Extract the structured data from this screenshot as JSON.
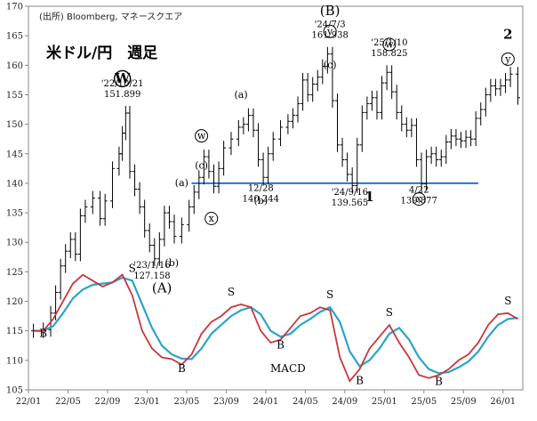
{
  "chart_data": {
    "type": "line",
    "source": "(出所) Bloomberg, マネースクエア",
    "title": "米ドル/円　週足",
    "y_ticks": [
      "105",
      "110",
      "115",
      "120",
      "125",
      "130",
      "135",
      "140",
      "145",
      "150",
      "155",
      "160",
      "165",
      "170"
    ],
    "ylim": [
      105,
      170
    ],
    "x_ticks": [
      "22/01",
      "22/05",
      "22/09",
      "23/01",
      "23/05",
      "23/09",
      "24/01",
      "24/05",
      "24/09",
      "25/01",
      "25/05",
      "25/09",
      "26/01"
    ],
    "xlim": [
      "2022-01",
      "2026-03"
    ],
    "price": {
      "name": "USD/JPY",
      "points": [
        [
          "2022-01",
          115.0
        ],
        [
          "2022-02",
          115.2
        ],
        [
          "2022-03",
          118.0
        ],
        [
          "2022-03",
          121.5
        ],
        [
          "2022-04",
          126.0
        ],
        [
          "2022-04",
          128.5
        ],
        [
          "2022-05",
          130.5
        ],
        [
          "2022-05",
          128.0
        ],
        [
          "2022-06",
          134.5
        ],
        [
          "2022-06",
          136.0
        ],
        [
          "2022-07",
          137.5
        ],
        [
          "2022-08",
          134.0
        ],
        [
          "2022-08",
          137.0
        ],
        [
          "2022-09",
          142.5
        ],
        [
          "2022-10",
          145.0
        ],
        [
          "2022-10",
          148.5
        ],
        [
          "2022-10",
          151.9
        ],
        [
          "2022-11",
          142.0
        ],
        [
          "2022-11",
          139.0
        ],
        [
          "2022-12",
          136.0
        ],
        [
          "2022-12",
          132.0
        ],
        [
          "2023-01",
          129.5
        ],
        [
          "2023-01",
          127.2
        ],
        [
          "2023-02",
          130.5
        ],
        [
          "2023-02",
          135.0
        ],
        [
          "2023-03",
          133.5
        ],
        [
          "2023-03",
          131.0
        ],
        [
          "2023-04",
          133.0
        ],
        [
          "2023-05",
          136.0
        ],
        [
          "2023-05",
          138.5
        ],
        [
          "2023-06",
          141.0
        ],
        [
          "2023-06",
          144.5
        ],
        [
          "2023-07",
          142.0
        ],
        [
          "2023-07",
          139.5
        ],
        [
          "2023-08",
          142.5
        ],
        [
          "2023-08",
          146.0
        ],
        [
          "2023-09",
          147.5
        ],
        [
          "2023-10",
          149.5
        ],
        [
          "2023-10",
          150.0
        ],
        [
          "2023-11",
          151.5
        ],
        [
          "2023-11",
          149.0
        ],
        [
          "2023-12",
          144.0
        ],
        [
          "2023-12",
          141.0
        ],
        [
          "2024-01",
          145.0
        ],
        [
          "2024-01",
          147.5
        ],
        [
          "2024-02",
          149.5
        ],
        [
          "2024-03",
          150.5
        ],
        [
          "2024-03",
          151.5
        ],
        [
          "2024-04",
          153.5
        ],
        [
          "2024-04",
          157.5
        ],
        [
          "2024-05",
          155.0
        ],
        [
          "2024-05",
          156.8
        ],
        [
          "2024-06",
          158.0
        ],
        [
          "2024-06",
          159.8
        ],
        [
          "2024-07",
          161.9
        ],
        [
          "2024-07",
          154.0
        ],
        [
          "2024-08",
          146.5
        ],
        [
          "2024-08",
          144.0
        ],
        [
          "2024-09",
          141.5
        ],
        [
          "2024-09",
          139.6
        ],
        [
          "2024-10",
          146.5
        ],
        [
          "2024-10",
          152.0
        ],
        [
          "2024-11",
          153.5
        ],
        [
          "2024-11",
          154.5
        ],
        [
          "2024-12",
          152.0
        ],
        [
          "2024-12",
          157.0
        ],
        [
          "2025-01",
          158.8
        ],
        [
          "2025-01",
          155.5
        ],
        [
          "2025-02",
          152.0
        ],
        [
          "2025-02",
          150.0
        ],
        [
          "2025-03",
          149.0
        ],
        [
          "2025-03",
          149.8
        ],
        [
          "2025-04",
          144.0
        ],
        [
          "2025-04",
          139.9
        ],
        [
          "2025-05",
          144.5
        ],
        [
          "2025-05",
          145.0
        ],
        [
          "2025-06",
          144.0
        ],
        [
          "2025-06",
          144.5
        ],
        [
          "2025-07",
          147.0
        ],
        [
          "2025-07",
          148.0
        ],
        [
          "2025-08",
          147.5
        ],
        [
          "2025-08",
          147.2
        ],
        [
          "2025-09",
          147.8
        ],
        [
          "2025-09",
          147.5
        ],
        [
          "2025-10",
          151.0
        ],
        [
          "2025-10",
          152.5
        ],
        [
          "2025-11",
          155.0
        ],
        [
          "2025-11",
          156.5
        ],
        [
          "2025-12",
          156.0
        ],
        [
          "2025-12",
          156.5
        ],
        [
          "2026-01",
          157.5
        ],
        [
          "2026-01",
          158.5
        ],
        [
          "2026-02",
          154.5
        ]
      ]
    },
    "support_line": {
      "value": 140,
      "from": "2023-05",
      "to": "2025-10",
      "color": "#1f77d0"
    },
    "annotations": [
      {
        "x": "2022-10",
        "y": 151.899,
        "date": "'22/10/21",
        "value": "151.899"
      },
      {
        "x": "2023-01",
        "y": 127.158,
        "date": "'23/1/16",
        "value": "127.158"
      },
      {
        "x": "2023-12",
        "y": 140.244,
        "date": "12/28",
        "value": "140.244"
      },
      {
        "x": "2024-07",
        "y": 161.938,
        "date": "'24/7/3",
        "value": "161.938"
      },
      {
        "x": "2024-09",
        "y": 139.565,
        "date": "'24/9/16",
        "value": "139.565",
        "color": "#e0262b"
      },
      {
        "x": "2025-01",
        "y": 158.825,
        "date": "'25/1/10",
        "value": "158.825"
      },
      {
        "x": "2025-04",
        "y": 139.877,
        "date": "4/22",
        "value": "139.877",
        "color": "#1f77d0"
      }
    ],
    "wave_labels": [
      {
        "x": "2022-10",
        "y": 157,
        "text": "W",
        "circled": true,
        "style": "large"
      },
      {
        "x": "2023-02",
        "y": 121.5,
        "text": "(A)",
        "style": "large"
      },
      {
        "x": "2023-03",
        "y": 126,
        "text": "(b)"
      },
      {
        "x": "2023-04",
        "y": 139.5,
        "text": "(a)"
      },
      {
        "x": "2023-06",
        "y": 147.5,
        "text": "w",
        "circled": true
      },
      {
        "x": "2023-06",
        "y": 142.5,
        "text": "(c)"
      },
      {
        "x": "2023-07",
        "y": 133.5,
        "text": "x",
        "circled": true
      },
      {
        "x": "2023-10",
        "y": 154.5,
        "text": "(a)"
      },
      {
        "x": "2023-12",
        "y": 136.5,
        "text": "(b)"
      },
      {
        "x": "2024-07",
        "y": 168.5,
        "text": "(B)",
        "style": "large"
      },
      {
        "x": "2024-07",
        "y": 165.2,
        "text": "y",
        "circled": true
      },
      {
        "x": "2024-07",
        "y": 159.5,
        "text": "(c)"
      },
      {
        "x": "2024-11",
        "y": 137,
        "text": "1",
        "style": "bold"
      },
      {
        "x": "2025-01",
        "y": 163,
        "text": "w",
        "circled": true
      },
      {
        "x": "2025-04",
        "y": 136.8,
        "text": "x",
        "circled": true
      },
      {
        "x": "2026-01",
        "y": 164.5,
        "text": "2",
        "style": "bold"
      },
      {
        "x": "2026-01",
        "y": 160.5,
        "text": "y",
        "circled": true
      }
    ],
    "macd": {
      "label": "MACD",
      "line_color": "#c8373b",
      "signal_color": "#2ba3c9",
      "macd_line": [
        [
          "2022-01",
          115.0
        ],
        [
          "2022-02",
          115.0
        ],
        [
          "2022-03",
          117.0
        ],
        [
          "2022-04",
          120.0
        ],
        [
          "2022-05",
          123.0
        ],
        [
          "2022-06",
          124.5
        ],
        [
          "2022-07",
          123.5
        ],
        [
          "2022-08",
          122.5
        ],
        [
          "2022-09",
          123.2
        ],
        [
          "2022-10",
          124.5
        ],
        [
          "2022-11",
          121.0
        ],
        [
          "2022-12",
          115.0
        ],
        [
          "2023-01",
          112.0
        ],
        [
          "2023-02",
          110.5
        ],
        [
          "2023-03",
          110.2
        ],
        [
          "2023-04",
          109.3
        ],
        [
          "2023-05",
          111.0
        ],
        [
          "2023-06",
          114.5
        ],
        [
          "2023-07",
          116.5
        ],
        [
          "2023-08",
          117.5
        ],
        [
          "2023-09",
          119.0
        ],
        [
          "2023-10",
          119.5
        ],
        [
          "2023-11",
          119.0
        ],
        [
          "2023-12",
          115.0
        ],
        [
          "2024-01",
          113.0
        ],
        [
          "2024-02",
          113.5
        ],
        [
          "2024-03",
          115.5
        ],
        [
          "2024-04",
          117.5
        ],
        [
          "2024-05",
          118.0
        ],
        [
          "2024-06",
          119.0
        ],
        [
          "2024-07",
          118.5
        ],
        [
          "2024-08",
          110.5
        ],
        [
          "2024-09",
          106.5
        ],
        [
          "2024-10",
          108.5
        ],
        [
          "2024-11",
          112.0
        ],
        [
          "2024-12",
          114.0
        ],
        [
          "2025-01",
          116.0
        ],
        [
          "2025-02",
          113.0
        ],
        [
          "2025-03",
          110.5
        ],
        [
          "2025-04",
          107.5
        ],
        [
          "2025-05",
          107.0
        ],
        [
          "2025-06",
          107.5
        ],
        [
          "2025-07",
          108.5
        ],
        [
          "2025-08",
          110.0
        ],
        [
          "2025-09",
          111.0
        ],
        [
          "2025-10",
          113.0
        ],
        [
          "2025-11",
          116.0
        ],
        [
          "2025-12",
          117.8
        ],
        [
          "2026-01",
          118.0
        ],
        [
          "2026-02",
          117.0
        ]
      ],
      "signal_line": [
        [
          "2022-01",
          115.0
        ],
        [
          "2022-02",
          115.0
        ],
        [
          "2022-03",
          115.8
        ],
        [
          "2022-04",
          118.0
        ],
        [
          "2022-05",
          120.5
        ],
        [
          "2022-06",
          122.0
        ],
        [
          "2022-07",
          122.8
        ],
        [
          "2022-08",
          123.0
        ],
        [
          "2022-09",
          123.2
        ],
        [
          "2022-10",
          124.0
        ],
        [
          "2022-11",
          123.5
        ],
        [
          "2022-12",
          119.5
        ],
        [
          "2023-01",
          115.5
        ],
        [
          "2023-02",
          112.5
        ],
        [
          "2023-03",
          111.0
        ],
        [
          "2023-04",
          110.3
        ],
        [
          "2023-05",
          110.2
        ],
        [
          "2023-06",
          112.0
        ],
        [
          "2023-07",
          114.5
        ],
        [
          "2023-08",
          116.0
        ],
        [
          "2023-09",
          117.5
        ],
        [
          "2023-10",
          118.5
        ],
        [
          "2023-11",
          119.0
        ],
        [
          "2023-12",
          117.8
        ],
        [
          "2024-01",
          115.0
        ],
        [
          "2024-02",
          114.0
        ],
        [
          "2024-03",
          114.5
        ],
        [
          "2024-04",
          116.0
        ],
        [
          "2024-05",
          117.0
        ],
        [
          "2024-06",
          118.2
        ],
        [
          "2024-07",
          119.0
        ],
        [
          "2024-08",
          116.5
        ],
        [
          "2024-09",
          111.5
        ],
        [
          "2024-10",
          109.0
        ],
        [
          "2024-11",
          110.0
        ],
        [
          "2024-12",
          112.0
        ],
        [
          "2025-01",
          114.5
        ],
        [
          "2025-02",
          115.5
        ],
        [
          "2025-03",
          113.5
        ],
        [
          "2025-04",
          110.5
        ],
        [
          "2025-05",
          108.5
        ],
        [
          "2025-06",
          107.8
        ],
        [
          "2025-07",
          108.0
        ],
        [
          "2025-08",
          108.8
        ],
        [
          "2025-09",
          109.8
        ],
        [
          "2025-10",
          111.5
        ],
        [
          "2025-11",
          114.0
        ],
        [
          "2025-12",
          116.0
        ],
        [
          "2026-01",
          117.0
        ],
        [
          "2026-02",
          117.2
        ]
      ],
      "signals": [
        {
          "x": "2022-02",
          "y": 114,
          "text": "B"
        },
        {
          "x": "2022-11",
          "y": 125,
          "text": "S"
        },
        {
          "x": "2023-04",
          "y": 108,
          "text": "B"
        },
        {
          "x": "2023-09",
          "y": 121,
          "text": "S"
        },
        {
          "x": "2024-02",
          "y": 112,
          "text": "B"
        },
        {
          "x": "2024-07",
          "y": 120.5,
          "text": "S"
        },
        {
          "x": "2024-10",
          "y": 106,
          "text": "B"
        },
        {
          "x": "2025-01",
          "y": 117.5,
          "text": "S"
        },
        {
          "x": "2025-06",
          "y": 105.8,
          "text": "B"
        },
        {
          "x": "2026-01",
          "y": 119.5,
          "text": "S"
        }
      ]
    },
    "grid": false
  }
}
